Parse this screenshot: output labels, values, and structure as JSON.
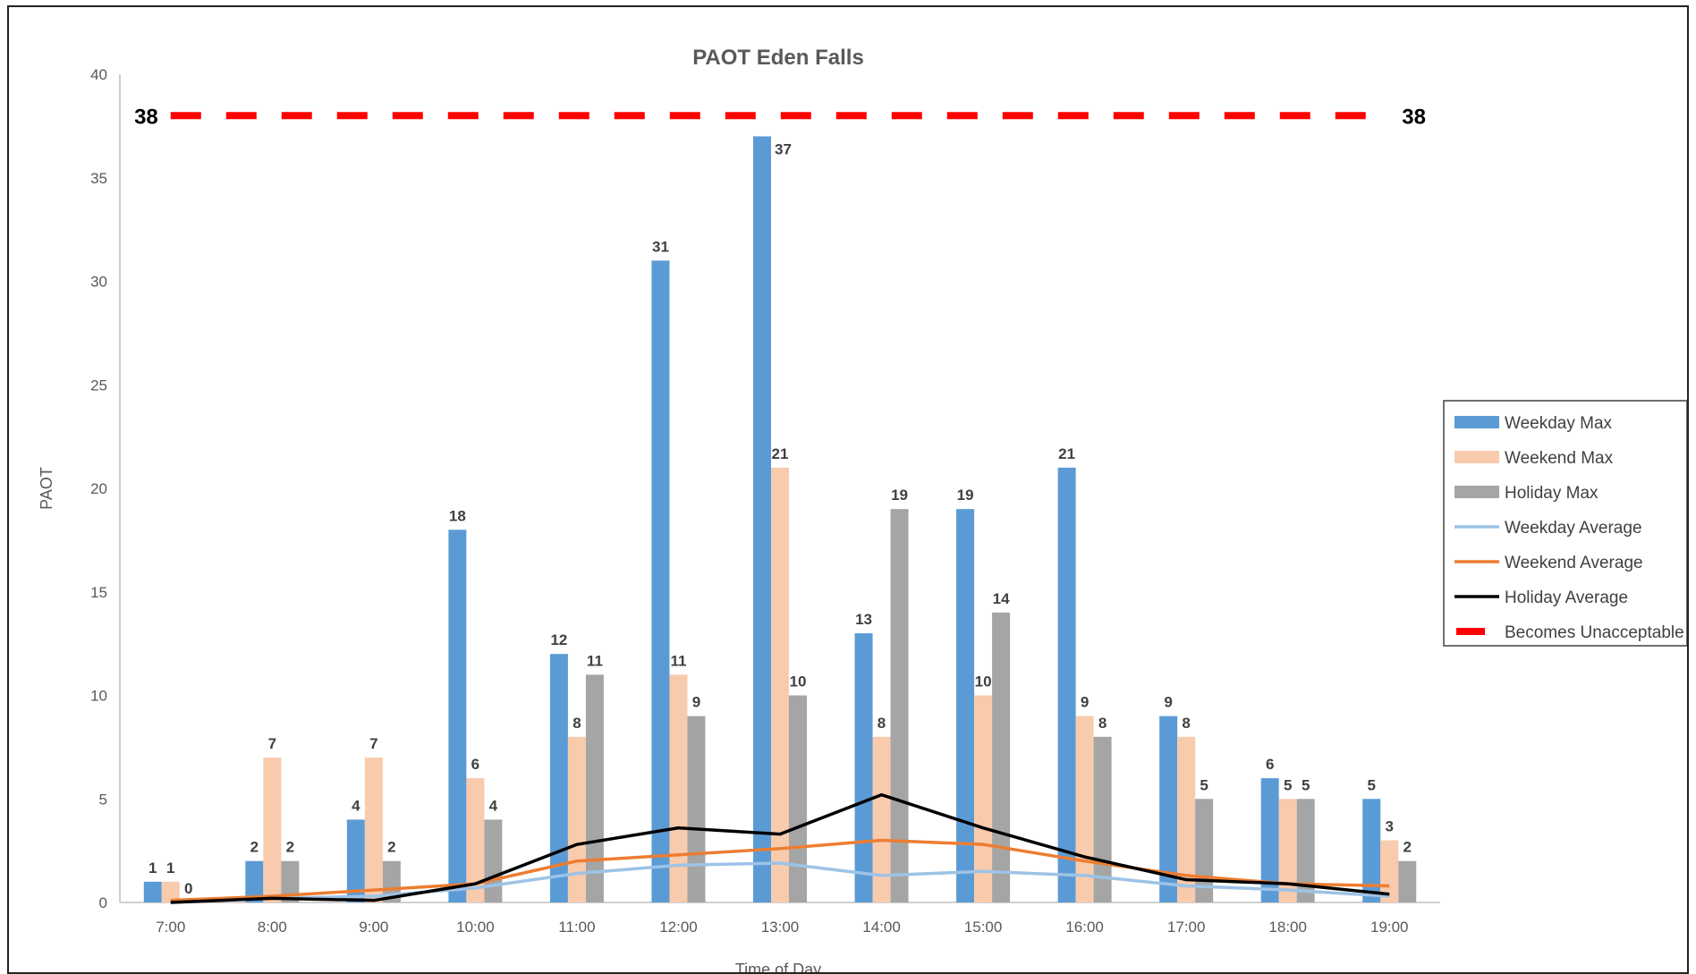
{
  "chart_data": {
    "type": "bar",
    "title": "PAOT Eden Falls",
    "xlabel": "Time of Day",
    "ylabel": "PAOT",
    "ylim": [
      0,
      40
    ],
    "yticks": [
      0,
      5,
      10,
      15,
      20,
      25,
      30,
      35,
      40
    ],
    "categories": [
      "7:00",
      "8:00",
      "9:00",
      "10:00",
      "11:00",
      "12:00",
      "13:00",
      "14:00",
      "15:00",
      "16:00",
      "17:00",
      "18:00",
      "19:00"
    ],
    "series": [
      {
        "name": "Weekday Max",
        "kind": "bar",
        "color": "#5b9bd5",
        "values": [
          1,
          2,
          4,
          18,
          12,
          31,
          37,
          13,
          19,
          21,
          9,
          6,
          5
        ]
      },
      {
        "name": "Weekend Max",
        "kind": "bar",
        "color": "#f8cbad",
        "values": [
          1,
          7,
          7,
          6,
          8,
          11,
          21,
          8,
          10,
          9,
          8,
          5,
          3
        ]
      },
      {
        "name": "Holiday Max",
        "kind": "bar",
        "color": "#a5a5a5",
        "values": [
          0,
          2,
          2,
          4,
          11,
          9,
          10,
          19,
          14,
          8,
          5,
          5,
          2
        ]
      },
      {
        "name": "Weekday Average",
        "kind": "line",
        "color": "#9dc3e6",
        "values": [
          0.1,
          0.2,
          0.3,
          0.7,
          1.4,
          1.8,
          1.9,
          1.3,
          1.5,
          1.3,
          0.8,
          0.6,
          0.3
        ]
      },
      {
        "name": "Weekend Average",
        "kind": "line",
        "color": "#ed7d31",
        "values": [
          0.1,
          0.3,
          0.6,
          0.9,
          2.0,
          2.3,
          2.6,
          3.0,
          2.8,
          2.0,
          1.3,
          0.9,
          0.8
        ]
      },
      {
        "name": "Holiday Average",
        "kind": "line",
        "color": "#000000",
        "values": [
          0,
          0.2,
          0.1,
          0.9,
          2.8,
          3.6,
          3.3,
          5.2,
          3.6,
          2.2,
          1.1,
          0.9,
          0.4
        ]
      }
    ],
    "threshold": {
      "name": "Becomes Unacceptable",
      "value": 38,
      "label": "38",
      "color": "#ff0000"
    },
    "legend_position": "right",
    "grid": false
  }
}
